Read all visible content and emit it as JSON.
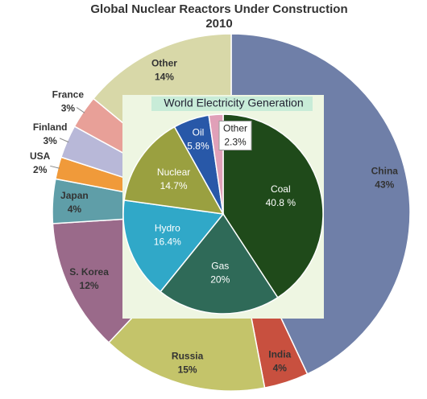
{
  "chart_data": [
    {
      "type": "pie",
      "title": "Global Nuclear Reactors Under Construction",
      "subtitle": "2010",
      "categories": [
        "China",
        "India",
        "Russia",
        "S. Korea",
        "Japan",
        "USA",
        "Finland",
        "France",
        "Other"
      ],
      "values": [
        43,
        4,
        15,
        12,
        4,
        2,
        3,
        3,
        14
      ],
      "value_labels": [
        "43%",
        "4%",
        "15%",
        "12%",
        "4%",
        "2%",
        "3%",
        "3%",
        "14%"
      ],
      "colors": [
        "#6f7fa8",
        "#c8503f",
        "#c4c46a",
        "#9a6a8a",
        "#5f9ea8",
        "#f09a3a",
        "#b8b8d8",
        "#e8a098",
        "#d8d8a8"
      ]
    },
    {
      "type": "pie",
      "title": "World Electricity Generation",
      "categories": [
        "Coal",
        "Gas",
        "Hydro",
        "Nuclear",
        "Oil",
        "Other"
      ],
      "values": [
        40.8,
        20,
        16.4,
        14.7,
        5.8,
        2.3
      ],
      "value_labels": [
        "40.8 %",
        "20%",
        "16.4%",
        "14.7%",
        "5.8%",
        "2.3%"
      ],
      "colors": [
        "#1f4a1a",
        "#2f6a58",
        "#30a8c8",
        "#9aa040",
        "#2858a8",
        "#e0a0b8"
      ]
    }
  ]
}
